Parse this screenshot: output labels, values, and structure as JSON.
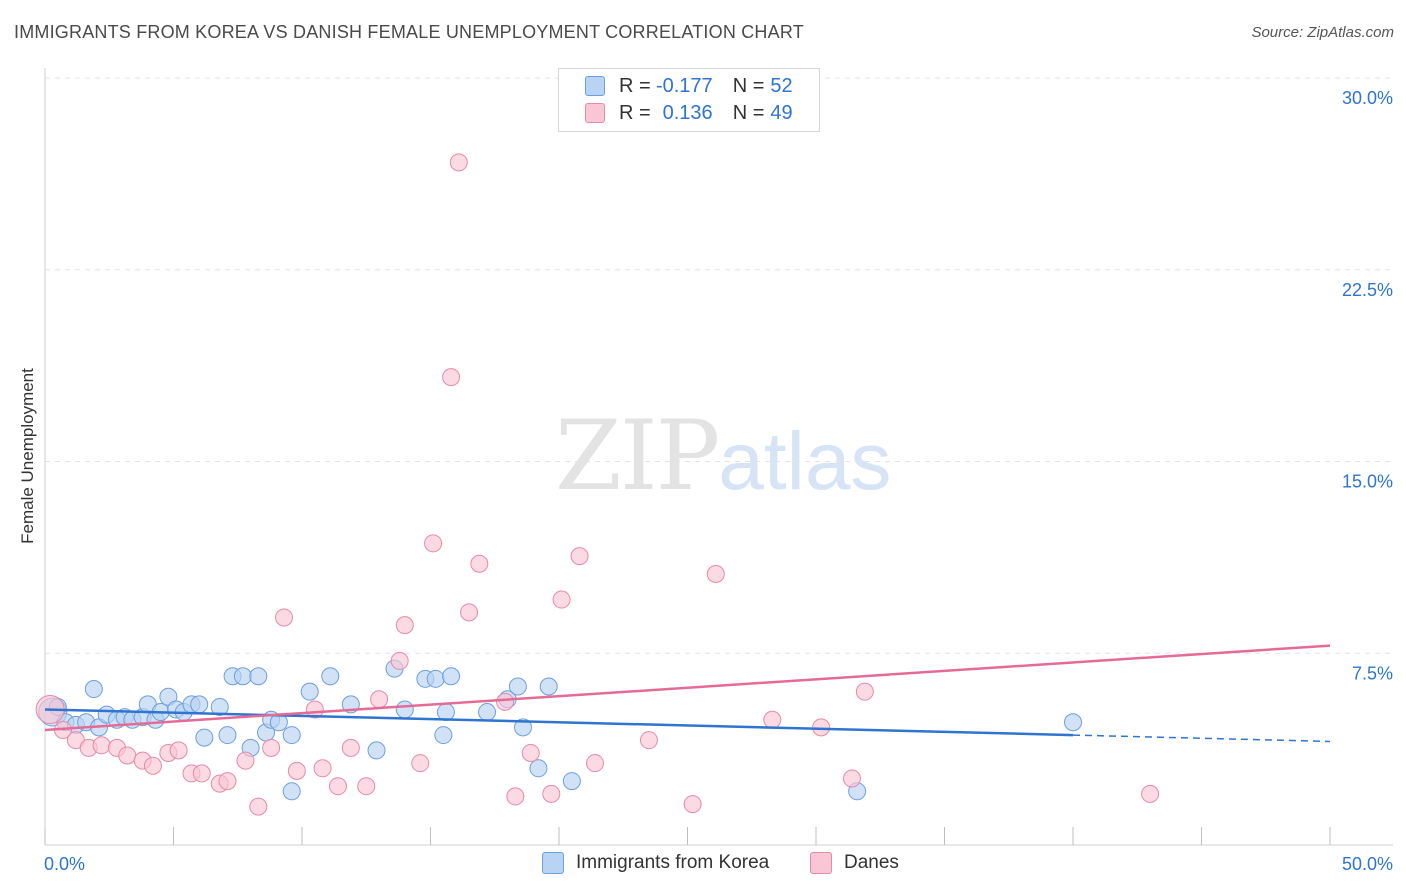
{
  "title": "IMMIGRANTS FROM KOREA VS DANISH FEMALE UNEMPLOYMENT CORRELATION CHART",
  "source": "Source: ZipAtlas.com",
  "watermark": {
    "zip": "ZIP",
    "atlas": "atlas"
  },
  "legend": {
    "rows": [
      {
        "r_label": "R = ",
        "r_value": "-0.177",
        "n_label": "N = ",
        "n_value": "52"
      },
      {
        "r_label": "R = ",
        "r_value": "0.136",
        "n_label": "N = ",
        "n_value": "49"
      }
    ]
  },
  "colors": {
    "korea_fill": "#b9d3f3",
    "korea_stroke": "#6d9fde",
    "korea_line": "#2f74d0",
    "danes_fill": "#f9c6d5",
    "danes_stroke": "#e88aa8",
    "danes_line": "#e56b96",
    "tick_label": "#2f74d0",
    "grid": "#e3e3e3"
  },
  "chart_data": {
    "type": "scatter",
    "xlabel": "",
    "ylabel": "Female Unemployment",
    "xlim": [
      0,
      50
    ],
    "ylim": [
      0,
      30
    ],
    "x_tick_labels": [
      {
        "value": 0,
        "label": "0.0%"
      },
      {
        "value": 50,
        "label": "50.0%"
      }
    ],
    "y_tick_labels": [
      {
        "value": 7.5,
        "label": "7.5%"
      },
      {
        "value": 15,
        "label": "15.0%"
      },
      {
        "value": 22.5,
        "label": "22.5%"
      },
      {
        "value": 30,
        "label": "30.0%"
      }
    ],
    "grid": true,
    "legend_position": "top-center",
    "series": [
      {
        "name": "Immigrants from Korea",
        "trend": {
          "x_start": 0,
          "y_start": 5.3,
          "x_end": 40,
          "y_end": 4.3,
          "dashed_to_x": 50,
          "dashed_to_y": 4.05
        },
        "points": [
          [
            0.3,
            5.2
          ],
          [
            0.5,
            5.4
          ],
          [
            0.8,
            4.8
          ],
          [
            1.2,
            4.7
          ],
          [
            1.6,
            4.8
          ],
          [
            1.9,
            6.1
          ],
          [
            2.1,
            4.6
          ],
          [
            2.4,
            5.1
          ],
          [
            2.8,
            4.9
          ],
          [
            3.1,
            5.0
          ],
          [
            3.4,
            4.9
          ],
          [
            3.8,
            5.0
          ],
          [
            4.0,
            5.5
          ],
          [
            4.3,
            4.9
          ],
          [
            4.5,
            5.2
          ],
          [
            4.8,
            5.8
          ],
          [
            5.1,
            5.3
          ],
          [
            5.4,
            5.2
          ],
          [
            5.7,
            5.5
          ],
          [
            6.0,
            5.5
          ],
          [
            6.2,
            4.2
          ],
          [
            6.8,
            5.4
          ],
          [
            7.1,
            4.3
          ],
          [
            7.3,
            6.6
          ],
          [
            7.7,
            6.6
          ],
          [
            8.0,
            3.8
          ],
          [
            8.3,
            6.6
          ],
          [
            8.6,
            4.4
          ],
          [
            8.8,
            4.9
          ],
          [
            9.1,
            4.8
          ],
          [
            9.6,
            4.3
          ],
          [
            9.6,
            2.1
          ],
          [
            10.3,
            6.0
          ],
          [
            11.1,
            6.6
          ],
          [
            11.9,
            5.5
          ],
          [
            12.9,
            3.7
          ],
          [
            13.6,
            6.9
          ],
          [
            14.0,
            5.3
          ],
          [
            14.8,
            6.5
          ],
          [
            15.2,
            6.5
          ],
          [
            15.5,
            4.3
          ],
          [
            15.6,
            5.2
          ],
          [
            15.8,
            6.6
          ],
          [
            17.2,
            5.2
          ],
          [
            18.0,
            5.7
          ],
          [
            18.4,
            6.2
          ],
          [
            18.6,
            4.6
          ],
          [
            19.2,
            3.0
          ],
          [
            19.6,
            6.2
          ],
          [
            20.5,
            2.5
          ],
          [
            31.6,
            2.1
          ],
          [
            40.0,
            4.8
          ]
        ]
      },
      {
        "name": "Danes",
        "trend": {
          "x_start": 0,
          "y_start": 4.5,
          "x_end": 50,
          "y_end": 7.8
        },
        "points": [
          [
            0.2,
            5.3
          ],
          [
            0.7,
            4.5
          ],
          [
            1.2,
            4.1
          ],
          [
            1.7,
            3.8
          ],
          [
            2.2,
            3.9
          ],
          [
            2.8,
            3.8
          ],
          [
            3.2,
            3.5
          ],
          [
            3.8,
            3.3
          ],
          [
            4.2,
            3.1
          ],
          [
            4.8,
            3.6
          ],
          [
            5.2,
            3.7
          ],
          [
            5.7,
            2.8
          ],
          [
            6.1,
            2.8
          ],
          [
            6.8,
            2.4
          ],
          [
            7.1,
            2.5
          ],
          [
            7.8,
            3.3
          ],
          [
            8.3,
            1.5
          ],
          [
            8.8,
            3.8
          ],
          [
            9.3,
            8.9
          ],
          [
            9.8,
            2.9
          ],
          [
            10.5,
            5.3
          ],
          [
            10.8,
            3.0
          ],
          [
            11.4,
            2.3
          ],
          [
            11.9,
            3.8
          ],
          [
            12.5,
            2.3
          ],
          [
            13.0,
            5.7
          ],
          [
            13.8,
            7.2
          ],
          [
            14.0,
            8.6
          ],
          [
            14.6,
            3.2
          ],
          [
            15.1,
            11.8
          ],
          [
            15.8,
            18.3
          ],
          [
            16.1,
            26.7
          ],
          [
            16.5,
            9.1
          ],
          [
            16.9,
            11.0
          ],
          [
            17.9,
            5.6
          ],
          [
            18.3,
            1.9
          ],
          [
            18.9,
            3.6
          ],
          [
            19.7,
            2.0
          ],
          [
            20.1,
            9.6
          ],
          [
            20.8,
            11.3
          ],
          [
            21.4,
            3.2
          ],
          [
            23.5,
            4.1
          ],
          [
            25.2,
            1.6
          ],
          [
            26.1,
            10.6
          ],
          [
            28.3,
            4.9
          ],
          [
            30.2,
            4.6
          ],
          [
            31.4,
            2.6
          ],
          [
            31.9,
            6.0
          ],
          [
            43.0,
            2.0
          ]
        ]
      }
    ]
  },
  "bottom_legend": [
    {
      "label": "Immigrants from Korea"
    },
    {
      "label": "Danes"
    }
  ]
}
